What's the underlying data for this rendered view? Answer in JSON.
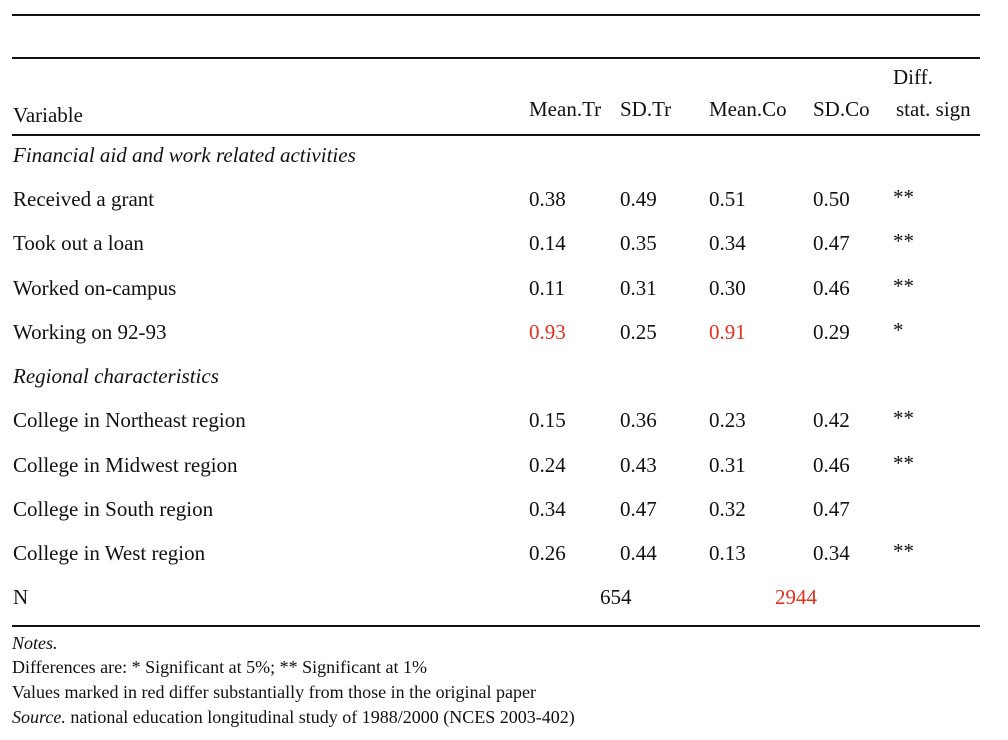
{
  "table": {
    "headers": {
      "variable": "Variable",
      "mean_tr": "Mean.Tr",
      "sd_tr": "SD.Tr",
      "mean_co": "Mean.Co",
      "sd_co": "SD.Co",
      "diff_line1": "Diff.",
      "diff_line2": "stat. sign"
    },
    "sections": [
      {
        "title": "Financial aid and work related activities",
        "rows": [
          {
            "variable": "Received a grant",
            "mean_tr": "0.38",
            "sd_tr": "0.49",
            "mean_co": "0.51",
            "sd_co": "0.50",
            "sig": "**"
          },
          {
            "variable": "Took out a loan",
            "mean_tr": "0.14",
            "sd_tr": "0.35",
            "mean_co": "0.34",
            "sd_co": "0.47",
            "sig": "**"
          },
          {
            "variable": "Worked on-campus",
            "mean_tr": "0.11",
            "sd_tr": "0.31",
            "mean_co": "0.30",
            "sd_co": "0.46",
            "sig": "**"
          },
          {
            "variable": "Working on 92-93",
            "mean_tr": "0.93",
            "sd_tr": "0.25",
            "mean_co": "0.91",
            "sd_co": "0.29",
            "sig": "*"
          }
        ]
      },
      {
        "title": "Regional characteristics",
        "rows": [
          {
            "variable": "College in Northeast region",
            "mean_tr": "0.15",
            "sd_tr": "0.36",
            "mean_co": "0.23",
            "sd_co": "0.42",
            "sig": "**"
          },
          {
            "variable": "College in Midwest region",
            "mean_tr": "0.24",
            "sd_tr": "0.43",
            "mean_co": "0.31",
            "sd_co": "0.46",
            "sig": "**"
          },
          {
            "variable": "College in South region",
            "mean_tr": "0.34",
            "sd_tr": "0.47",
            "mean_co": "0.32",
            "sd_co": "0.47",
            "sig": ""
          },
          {
            "variable": "College in West region",
            "mean_tr": "0.26",
            "sd_tr": "0.44",
            "mean_co": "0.13",
            "sd_co": "0.34",
            "sig": "**"
          }
        ]
      }
    ],
    "n_row": {
      "label": "N",
      "treated": "654",
      "control": "2944"
    }
  },
  "notes": {
    "heading": "Notes.",
    "line1": "Differences are: * Significant at 5%; ** Significant at 1%",
    "line2": "Values marked in red differ substantially from those in the original paper",
    "source_label": "Source.",
    "source_text": " national education longitudinal study of 1988/2000 (NCES 2003-402)"
  },
  "colors": {
    "highlight": "#e0301e",
    "text": "#111111"
  }
}
